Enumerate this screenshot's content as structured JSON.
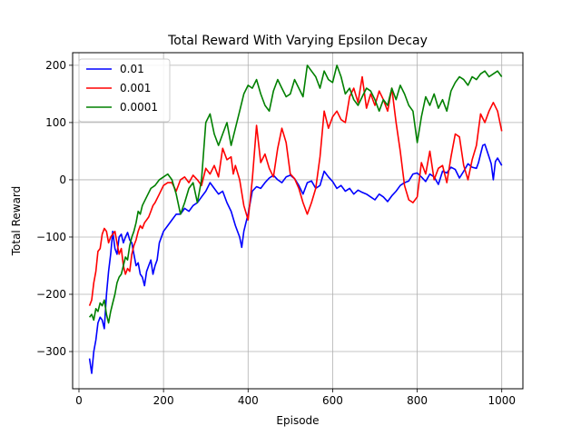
{
  "chart_data": {
    "type": "line",
    "title": "Total Reward With Varying Epsilon Decay",
    "xlabel": "Episode",
    "ylabel": "Total Reward",
    "xlim": [
      -15,
      1050
    ],
    "ylim": [
      -365,
      222
    ],
    "xticks": [
      0,
      200,
      400,
      600,
      800,
      1000
    ],
    "yticks": [
      -300,
      -200,
      -100,
      0,
      100,
      200
    ],
    "xtick_labels": [
      "0",
      "200",
      "400",
      "600",
      "800",
      "1000"
    ],
    "ytick_labels": [
      "−300",
      "−200",
      "−100",
      "0",
      "100",
      "200"
    ],
    "grid": true,
    "legend_position": "top-left",
    "series": [
      {
        "name": "0.01",
        "color": "#0000ff",
        "x": [
          25,
          30,
          35,
          40,
          45,
          50,
          55,
          60,
          65,
          70,
          75,
          80,
          85,
          90,
          95,
          100,
          105,
          110,
          115,
          120,
          125,
          130,
          135,
          140,
          145,
          150,
          155,
          160,
          165,
          170,
          175,
          180,
          185,
          190,
          200,
          210,
          220,
          230,
          240,
          250,
          260,
          270,
          280,
          290,
          300,
          310,
          320,
          330,
          340,
          350,
          360,
          370,
          380,
          385,
          390,
          395,
          400,
          410,
          420,
          430,
          440,
          450,
          460,
          470,
          480,
          490,
          500,
          510,
          520,
          530,
          540,
          550,
          560,
          570,
          580,
          590,
          600,
          610,
          620,
          630,
          640,
          650,
          660,
          670,
          680,
          690,
          700,
          710,
          720,
          730,
          740,
          750,
          760,
          770,
          780,
          790,
          800,
          810,
          820,
          830,
          840,
          850,
          860,
          870,
          880,
          890,
          900,
          910,
          920,
          930,
          940,
          945,
          950,
          955,
          960,
          970,
          975,
          980,
          985,
          990,
          1000
        ],
        "y": [
          -312,
          -338,
          -300,
          -280,
          -250,
          -240,
          -245,
          -260,
          -200,
          -160,
          -130,
          -90,
          -120,
          -130,
          -100,
          -95,
          -110,
          -100,
          -92,
          -105,
          -110,
          -130,
          -150,
          -145,
          -165,
          -170,
          -185,
          -160,
          -150,
          -140,
          -165,
          -150,
          -140,
          -110,
          -90,
          -80,
          -70,
          -60,
          -60,
          -50,
          -55,
          -45,
          -40,
          -30,
          -20,
          -5,
          -15,
          -25,
          -20,
          -40,
          -55,
          -80,
          -100,
          -118,
          -90,
          -75,
          -60,
          -20,
          -12,
          -15,
          -5,
          3,
          8,
          0,
          -5,
          5,
          8,
          2,
          -10,
          -25,
          -5,
          -2,
          -15,
          -10,
          15,
          5,
          -3,
          -15,
          -10,
          -20,
          -15,
          -25,
          -18,
          -22,
          -25,
          -30,
          -35,
          -25,
          -30,
          -38,
          -28,
          -20,
          -10,
          -5,
          -2,
          10,
          12,
          5,
          -3,
          10,
          5,
          -8,
          15,
          12,
          22,
          18,
          3,
          15,
          28,
          22,
          20,
          30,
          45,
          60,
          62,
          40,
          28,
          0,
          32,
          38,
          25
        ]
      },
      {
        "name": "0.001",
        "color": "#ff0000",
        "x": [
          25,
          30,
          35,
          40,
          45,
          50,
          55,
          60,
          65,
          70,
          75,
          80,
          85,
          90,
          95,
          100,
          105,
          110,
          115,
          120,
          125,
          130,
          135,
          140,
          145,
          150,
          155,
          160,
          165,
          170,
          175,
          180,
          190,
          200,
          210,
          220,
          230,
          240,
          250,
          260,
          270,
          280,
          290,
          300,
          310,
          320,
          330,
          340,
          350,
          360,
          365,
          370,
          380,
          390,
          400,
          410,
          420,
          430,
          440,
          450,
          460,
          470,
          480,
          490,
          500,
          510,
          520,
          530,
          540,
          550,
          560,
          570,
          580,
          590,
          600,
          610,
          620,
          630,
          640,
          650,
          660,
          670,
          680,
          690,
          700,
          710,
          720,
          730,
          740,
          750,
          760,
          770,
          780,
          790,
          800,
          810,
          820,
          830,
          840,
          850,
          860,
          870,
          880,
          890,
          900,
          910,
          920,
          930,
          940,
          950,
          960,
          970,
          980,
          990,
          1000
        ],
        "y": [
          -220,
          -210,
          -180,
          -160,
          -125,
          -120,
          -95,
          -85,
          -90,
          -110,
          -100,
          -95,
          -90,
          -110,
          -130,
          -120,
          -150,
          -165,
          -155,
          -160,
          -130,
          -115,
          -105,
          -90,
          -80,
          -85,
          -75,
          -70,
          -65,
          -55,
          -45,
          -40,
          -25,
          -10,
          -5,
          -5,
          -20,
          0,
          5,
          -5,
          8,
          0,
          -10,
          20,
          10,
          25,
          5,
          55,
          35,
          40,
          10,
          25,
          0,
          -45,
          -70,
          0,
          95,
          30,
          45,
          20,
          5,
          55,
          90,
          65,
          10,
          2,
          -15,
          -40,
          -60,
          -40,
          -15,
          40,
          120,
          90,
          110,
          120,
          105,
          100,
          145,
          160,
          135,
          180,
          125,
          150,
          130,
          155,
          140,
          120,
          160,
          100,
          50,
          -10,
          -35,
          -40,
          -30,
          30,
          10,
          50,
          0,
          20,
          25,
          -5,
          40,
          80,
          75,
          25,
          0,
          35,
          60,
          115,
          100,
          120,
          135,
          120,
          85
        ]
      },
      {
        "name": "0.0001",
        "color": "#008000",
        "x": [
          25,
          30,
          35,
          40,
          45,
          50,
          55,
          60,
          65,
          70,
          75,
          80,
          85,
          90,
          95,
          100,
          105,
          110,
          115,
          120,
          125,
          130,
          135,
          140,
          145,
          150,
          160,
          170,
          180,
          190,
          200,
          210,
          220,
          230,
          240,
          250,
          260,
          270,
          280,
          290,
          300,
          310,
          320,
          330,
          340,
          350,
          360,
          370,
          380,
          390,
          400,
          410,
          420,
          430,
          440,
          450,
          460,
          470,
          480,
          490,
          500,
          510,
          520,
          530,
          540,
          550,
          560,
          570,
          580,
          590,
          600,
          610,
          620,
          630,
          640,
          650,
          660,
          670,
          680,
          690,
          700,
          710,
          720,
          730,
          740,
          750,
          760,
          770,
          780,
          790,
          800,
          810,
          820,
          830,
          840,
          850,
          860,
          870,
          880,
          890,
          900,
          910,
          920,
          930,
          940,
          950,
          960,
          970,
          980,
          990,
          1000
        ],
        "y": [
          -240,
          -235,
          -245,
          -225,
          -230,
          -215,
          -220,
          -210,
          -235,
          -250,
          -230,
          -215,
          -200,
          -180,
          -170,
          -165,
          -150,
          -135,
          -140,
          -115,
          -100,
          -90,
          -75,
          -55,
          -60,
          -45,
          -30,
          -15,
          -10,
          0,
          5,
          10,
          0,
          -25,
          -60,
          -40,
          -15,
          -5,
          -40,
          0,
          100,
          115,
          80,
          60,
          80,
          100,
          60,
          90,
          120,
          150,
          165,
          160,
          175,
          150,
          130,
          120,
          155,
          175,
          160,
          145,
          150,
          175,
          160,
          145,
          200,
          190,
          180,
          160,
          190,
          175,
          170,
          200,
          180,
          150,
          160,
          140,
          130,
          145,
          160,
          155,
          140,
          120,
          140,
          130,
          160,
          140,
          165,
          150,
          130,
          120,
          65,
          110,
          145,
          130,
          150,
          125,
          140,
          120,
          155,
          170,
          180,
          175,
          165,
          180,
          175,
          185,
          190,
          180,
          185,
          190,
          180
        ]
      }
    ]
  }
}
